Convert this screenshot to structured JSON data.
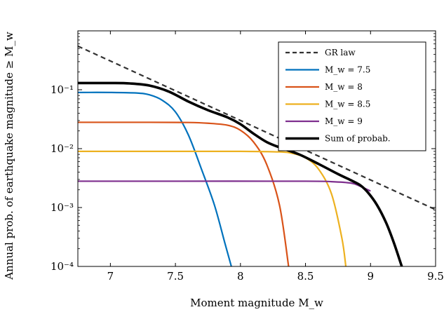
{
  "chart_data": {
    "type": "line",
    "xlabel": "Moment magnitude M_w",
    "ylabel": "Annual prob. of earthquake magnitude ≥ M_w",
    "xlim": [
      6.75,
      9.5
    ],
    "ylim": [
      0.0001,
      1
    ],
    "yscale": "log",
    "x_ticks": [
      {
        "value": 7,
        "label": "7"
      },
      {
        "value": 7.5,
        "label": "7.5"
      },
      {
        "value": 8,
        "label": "8"
      },
      {
        "value": 8.5,
        "label": "8.5"
      },
      {
        "value": 9,
        "label": "9"
      },
      {
        "value": 9.5,
        "label": "9.5"
      }
    ],
    "y_ticks": [
      {
        "value": 0.0001,
        "label": "10⁻⁴"
      },
      {
        "value": 0.001,
        "label": "10⁻³"
      },
      {
        "value": 0.01,
        "label": "10⁻²"
      },
      {
        "value": 0.1,
        "label": "10⁻¹"
      }
    ],
    "legend_position": "top-right",
    "series": [
      {
        "name": "GR law",
        "color": "#333333",
        "style": "dashed",
        "points": [
          [
            6.75,
            0.55
          ],
          [
            9.5,
            0.00092
          ]
        ]
      },
      {
        "name": "M_w = 7.5",
        "color": "#0072BD",
        "style": "solid",
        "points": [
          [
            6.75,
            0.09
          ],
          [
            7.0,
            0.09
          ],
          [
            7.2,
            0.088
          ],
          [
            7.3,
            0.082
          ],
          [
            7.4,
            0.066
          ],
          [
            7.5,
            0.042
          ],
          [
            7.6,
            0.017
          ],
          [
            7.7,
            0.0045
          ],
          [
            7.8,
            0.0011
          ],
          [
            7.88,
            0.00025
          ],
          [
            7.93,
            0.0001
          ]
        ]
      },
      {
        "name": "M_w = 8",
        "color": "#D95319",
        "style": "solid",
        "points": [
          [
            6.75,
            0.028
          ],
          [
            7.3,
            0.028
          ],
          [
            7.6,
            0.0278
          ],
          [
            7.75,
            0.027
          ],
          [
            7.9,
            0.025
          ],
          [
            8.0,
            0.0205
          ],
          [
            8.1,
            0.013
          ],
          [
            8.2,
            0.0055
          ],
          [
            8.3,
            0.0011
          ],
          [
            8.37,
            0.0001
          ]
        ]
      },
      {
        "name": "M_w = 8.5",
        "color": "#EDB120",
        "style": "solid",
        "points": [
          [
            6.75,
            0.009
          ],
          [
            7.5,
            0.009
          ],
          [
            8.0,
            0.009
          ],
          [
            8.3,
            0.0088
          ],
          [
            8.4,
            0.0083
          ],
          [
            8.5,
            0.007
          ],
          [
            8.6,
            0.0045
          ],
          [
            8.7,
            0.0017
          ],
          [
            8.78,
            0.0003
          ],
          [
            8.81,
            0.0001
          ]
        ]
      },
      {
        "name": "M_w = 9",
        "color": "#7E2F8E",
        "style": "solid",
        "points": [
          [
            6.75,
            0.0028
          ],
          [
            7.5,
            0.0028
          ],
          [
            8.5,
            0.0028
          ],
          [
            8.7,
            0.00275
          ],
          [
            8.85,
            0.0026
          ],
          [
            8.92,
            0.0023
          ],
          [
            9.0,
            0.0019
          ]
        ]
      },
      {
        "name": "Sum of probab.",
        "color": "#000000",
        "style": "solid-thick",
        "points": [
          [
            6.75,
            0.13
          ],
          [
            7.0,
            0.13
          ],
          [
            7.15,
            0.128
          ],
          [
            7.3,
            0.118
          ],
          [
            7.45,
            0.093
          ],
          [
            7.6,
            0.063
          ],
          [
            7.75,
            0.045
          ],
          [
            7.9,
            0.034
          ],
          [
            8.0,
            0.026
          ],
          [
            8.1,
            0.018
          ],
          [
            8.2,
            0.013
          ],
          [
            8.3,
            0.0105
          ],
          [
            8.45,
            0.008
          ],
          [
            8.6,
            0.0055
          ],
          [
            8.75,
            0.0037
          ],
          [
            8.85,
            0.0029
          ],
          [
            8.92,
            0.0024
          ],
          [
            8.98,
            0.0018
          ],
          [
            9.05,
            0.0011
          ],
          [
            9.12,
            0.00055
          ],
          [
            9.18,
            0.00025
          ],
          [
            9.24,
            0.0001
          ]
        ]
      }
    ]
  }
}
